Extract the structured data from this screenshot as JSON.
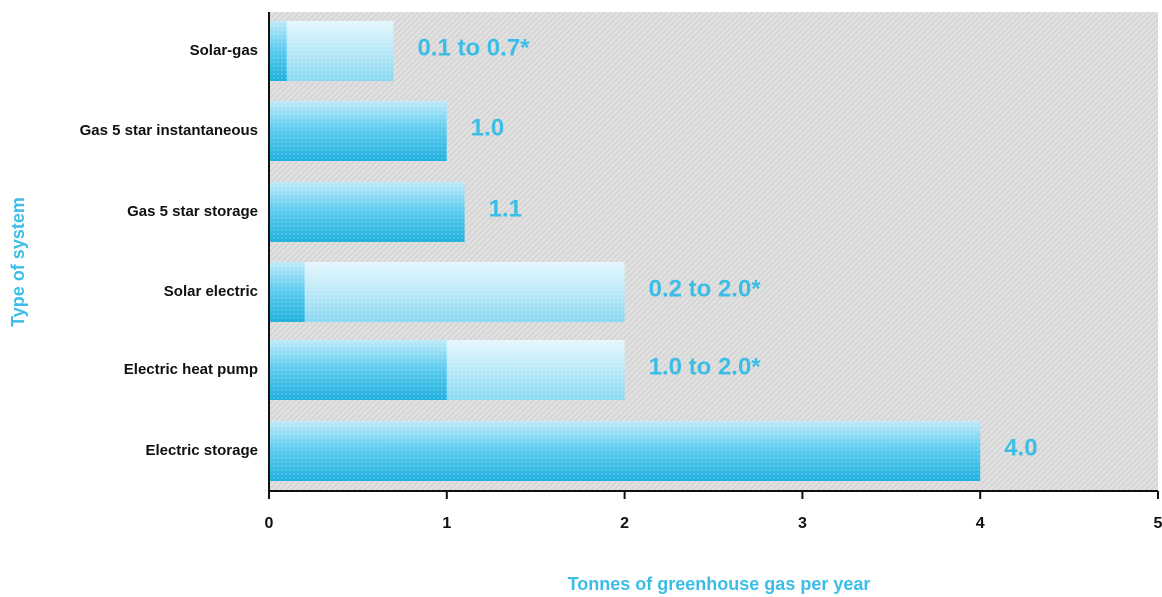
{
  "chart_data": {
    "type": "bar",
    "orientation": "horizontal",
    "categories": [
      "Solar-gas",
      "Gas 5 star instantaneous",
      "Gas 5 star storage",
      "Solar electric",
      "Electric heat pump",
      "Electric storage"
    ],
    "series": [
      {
        "values": [
          0.1,
          1.0,
          1.1,
          0.2,
          1.0,
          4.0
        ]
      },
      {
        "values": [
          0.7,
          1.0,
          1.1,
          2.0,
          2.0,
          4.0
        ]
      }
    ],
    "value_labels": [
      "0.1 to 0.7*",
      "1.0",
      "1.1",
      "0.2 to 2.0*",
      "1.0 to 2.0*",
      "4.0"
    ],
    "xlabel": "Tonnes of greenhouse gas per year",
    "ylabel": "Type of system",
    "xlim": [
      0,
      5
    ],
    "xticks": [
      "0",
      "1",
      "2",
      "3",
      "4",
      "5"
    ],
    "grid": false,
    "colors": {
      "bar_solid": "#2fb8e0",
      "bar_light": "#9ee0f4",
      "accent_text": "#3bbde6",
      "plot_bg": "#dcdcdc",
      "axis": "#111111"
    }
  }
}
